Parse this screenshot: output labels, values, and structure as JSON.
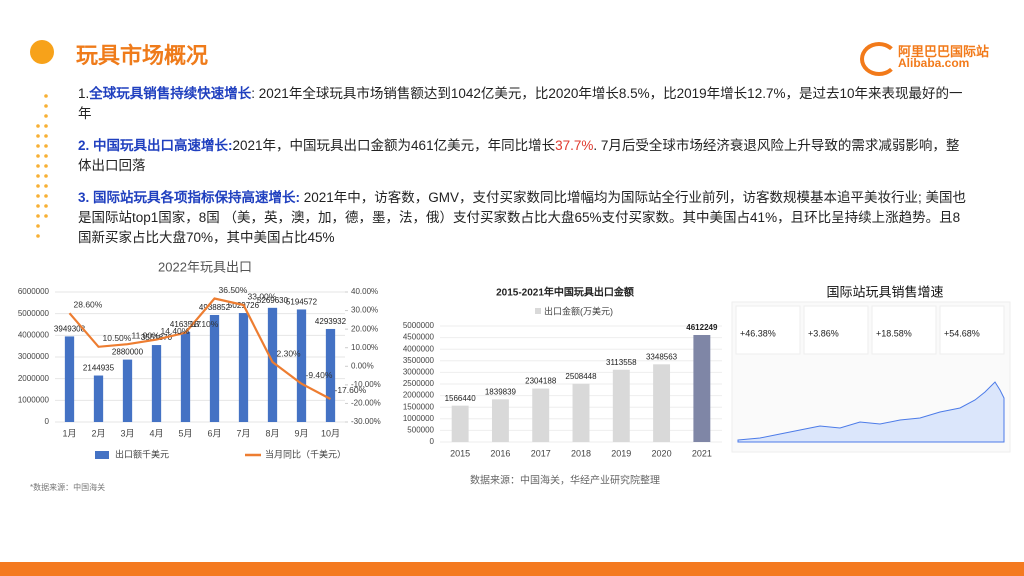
{
  "header": {
    "title": "玩具市场概况",
    "logo_cn": "阿里巴巴国际站",
    "logo_en": "Alibaba.com"
  },
  "paragraphs": [
    {
      "lead": "1.",
      "head": "全球玩具销售持续快速增长",
      "colon": ":",
      "text": "  2021年全球玩具市场销售额达到1042亿美元，比2020年增长8.5%，比2019年增长12.7%，是过去10年来表现最好的一年"
    },
    {
      "head": "2. 中国玩具出口高速增长:",
      "text": "2021年，中国玩具出口金额为461亿美元，年同比增长",
      "highlight": "37.7%",
      "tail": ". 7月后受全球市场经济衰退风险上升导致的需求减弱影响，整体出口回落"
    },
    {
      "head": "3. 国际站玩具各项指标保持高速增长:",
      "text": " 2021年中，访客数，GMV，支付买家数同比增幅均为国际站全行业前列，访客数规模基本追平美妆行业; 美国也是国际站top1国家，8国 （美，英，澳，加，德，墨，法，俄）支付买家数占比大盘65%支付买家数。其中美国占41%，且环比呈持续上涨趋势。且8国新买家占比大盘70%，其中美国占比45%"
    }
  ],
  "chart_data": [
    {
      "type": "bar",
      "title": "2022年玩具出口",
      "categories": [
        "1月",
        "2月",
        "3月",
        "4月",
        "5月",
        "6月",
        "7月",
        "8月",
        "9月",
        "10月"
      ],
      "series": [
        {
          "name": "出口额千美元",
          "color": "#4472c4",
          "values": [
            3949308,
            2144935,
            2880000,
            3551870,
            4163517,
            4938852,
            5029726,
            5269630,
            5194572,
            4293932
          ]
        },
        {
          "name": "当月同比（千美元）",
          "color": "#ed7d31",
          "axis": "y2",
          "values": [
            28.6,
            10.5,
            11.9,
            14.4,
            18.1,
            36.5,
            33.0,
            2.3,
            -9.4,
            -17.6
          ],
          "value_labels": [
            "28.60%",
            "10.50%",
            "11.90%",
            "14.40%",
            "18.10%",
            "36.50%",
            "33.00%",
            "2.30%",
            "-9.40%",
            "-17.60%"
          ]
        }
      ],
      "ylim": [
        0,
        6000000
      ],
      "yticks": [
        0,
        1000000,
        2000000,
        3000000,
        4000000,
        5000000,
        6000000
      ],
      "y2lim": [
        -30,
        40
      ],
      "y2ticks": [
        {
          "value": -30,
          "label": "-30.00%"
        },
        {
          "value": -20,
          "label": "-20.00%"
        },
        {
          "value": -10,
          "label": "-10.00%"
        },
        {
          "value": 0,
          "label": "0.00%"
        },
        {
          "value": 10,
          "label": "10.00%"
        },
        {
          "value": 20,
          "label": "20.00%"
        },
        {
          "value": 30,
          "label": "30.00%"
        },
        {
          "value": 40,
          "label": "40.00%"
        }
      ],
      "source": "*数据来源：中国海关"
    },
    {
      "type": "bar",
      "title": "2015-2021年中国玩具出口金额",
      "categories": [
        "2015",
        "2016",
        "2017",
        "2018",
        "2019",
        "2020",
        "2021"
      ],
      "series": [
        {
          "name": "出口金额(万美元)",
          "color": "#d9d9d9",
          "colors": [
            "#d9d9d9",
            "#d9d9d9",
            "#d9d9d9",
            "#d9d9d9",
            "#d9d9d9",
            "#d9d9d9",
            "#7f86a6"
          ],
          "values": [
            1566440,
            1839839,
            2304188,
            2508448,
            3113558,
            3348563,
            4612249
          ]
        }
      ],
      "ylim": [
        0,
        5000000
      ],
      "yticks": [
        0,
        500000,
        1000000,
        1500000,
        2000000,
        2500000,
        3000000,
        3500000,
        4000000,
        4500000,
        5000000
      ],
      "source": "数据来源：中国海关，华经产业研究院整理"
    }
  ],
  "dashboard": {
    "title": "国际站玩具销售增速",
    "metrics": [
      "+46.38%",
      "+3.86%",
      "+18.58%",
      "+54.68%"
    ]
  }
}
